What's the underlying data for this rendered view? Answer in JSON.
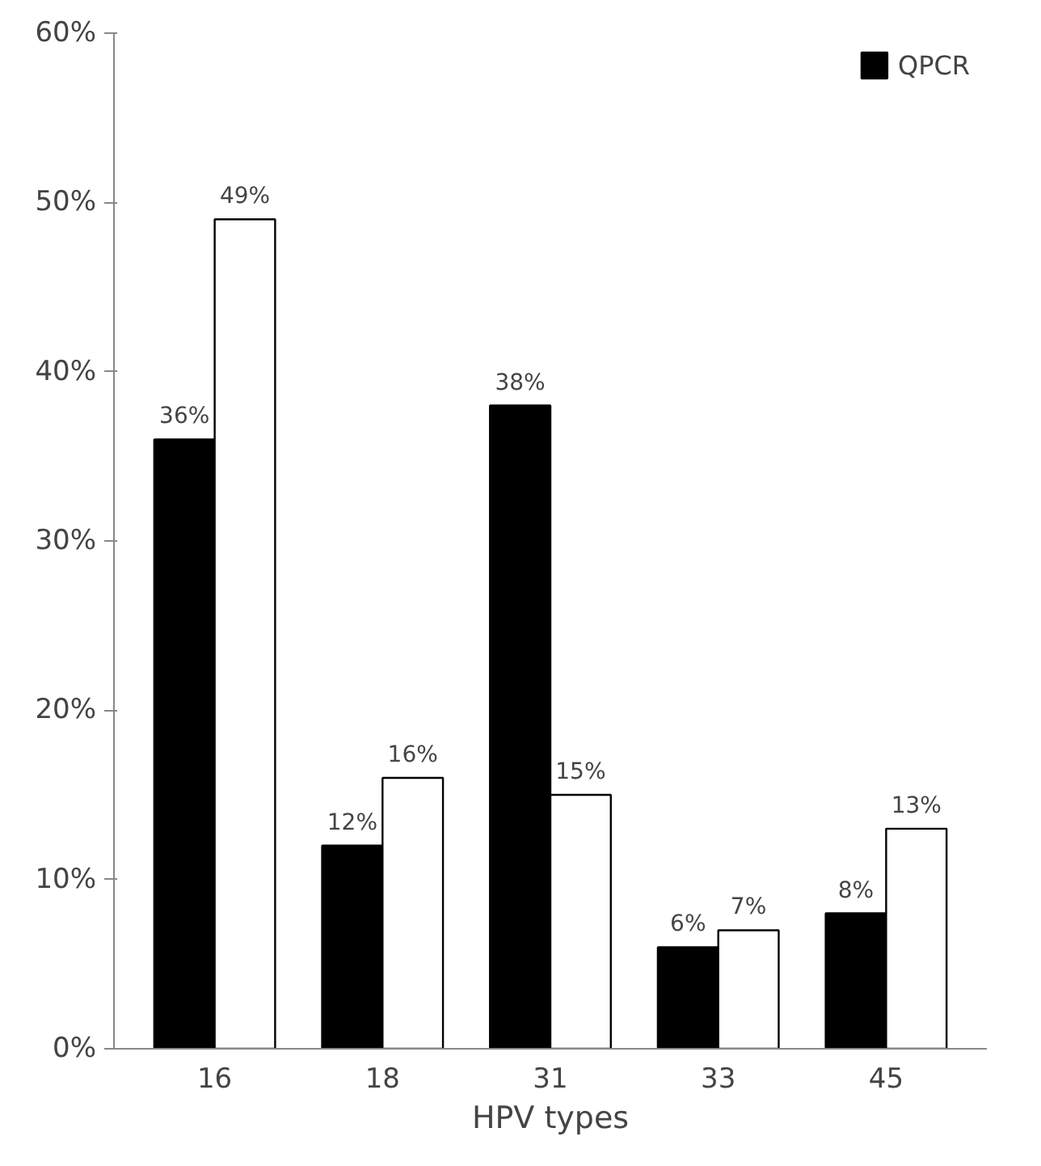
{
  "chart_data": {
    "type": "bar",
    "xlabel": "HPV types",
    "categories": [
      "16",
      "18",
      "31",
      "33",
      "45"
    ],
    "series": [
      {
        "name": "QPCR",
        "color": "#000000",
        "values": [
          36,
          12,
          38,
          6,
          8
        ],
        "value_labels": [
          "36%",
          "12%",
          "38%",
          "6%",
          "8%"
        ]
      },
      {
        "color": "#ffffff",
        "values": [
          49,
          16,
          15,
          7,
          13
        ],
        "value_labels": [
          "49%",
          "16%",
          "15%",
          "7%",
          "13%"
        ]
      }
    ],
    "ylim": [
      0,
      60
    ],
    "yticks": [
      {
        "value": 0,
        "label": "0%"
      },
      {
        "value": 10,
        "label": "10%"
      },
      {
        "value": 20,
        "label": "20%"
      },
      {
        "value": 30,
        "label": "30%"
      },
      {
        "value": 40,
        "label": "40%"
      },
      {
        "value": 50,
        "label": "50%"
      },
      {
        "value": 60,
        "label": "60%"
      }
    ],
    "grid": false,
    "legend": "top right"
  }
}
